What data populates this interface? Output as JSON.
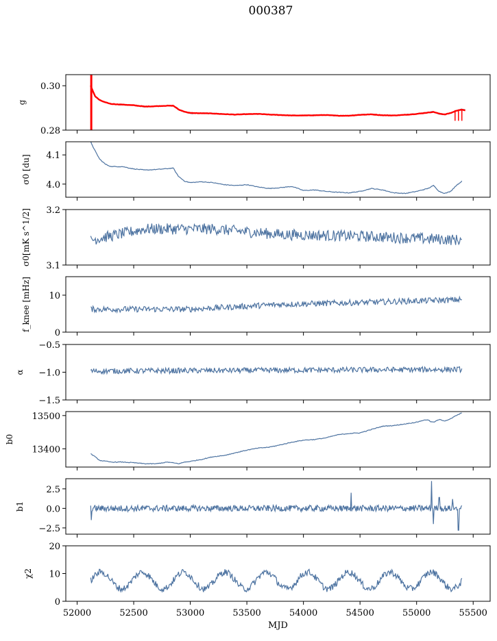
{
  "figure": {
    "title": "000387"
  },
  "style": {
    "series_color": "#4c72a0",
    "model_color": "#ff0000",
    "axis_color": "#000000"
  },
  "chart_data": [
    {
      "type": "line",
      "ylabel": "g",
      "ylim": [
        0.28,
        0.305
      ],
      "yticks": [
        0.28,
        0.3
      ],
      "ytick_labels": [
        "0.28",
        "0.30"
      ],
      "xlim": [
        51900,
        55650
      ],
      "x_range": [
        52120,
        55430
      ],
      "series": [
        {
          "role": "data",
          "x": [
            52120,
            52140,
            52160,
            52200,
            52250,
            52300,
            52400,
            52500,
            52600,
            52700,
            52800,
            52850,
            52900,
            52950,
            53000,
            53100,
            53200,
            53300,
            53400,
            53500,
            53600,
            53700,
            53800,
            53900,
            54000,
            54100,
            54200,
            54300,
            54400,
            54500,
            54600,
            54700,
            54800,
            54900,
            55000,
            55050,
            55100,
            55150,
            55200,
            55250,
            55300,
            55350,
            55400,
            55430
          ],
          "y": [
            0.2995,
            0.2975,
            0.295,
            0.2935,
            0.2925,
            0.2918,
            0.2913,
            0.2913,
            0.2905,
            0.2908,
            0.291,
            0.291,
            0.289,
            0.2882,
            0.2875,
            0.2877,
            0.2876,
            0.2872,
            0.287,
            0.2872,
            0.2874,
            0.287,
            0.2868,
            0.2866,
            0.2866,
            0.2868,
            0.2868,
            0.2864,
            0.2865,
            0.287,
            0.2872,
            0.2866,
            0.2866,
            0.287,
            0.2874,
            0.2876,
            0.288,
            0.2884,
            0.2872,
            0.287,
            0.2877,
            0.2888,
            0.2895,
            0.289
          ]
        },
        {
          "role": "model",
          "x": [
            52120,
            52140,
            52160,
            52200,
            52250,
            52300,
            52400,
            52500,
            52600,
            52700,
            52800,
            52850,
            52900,
            52950,
            53000,
            53100,
            53200,
            53300,
            53400,
            53500,
            53600,
            53700,
            53800,
            53900,
            54000,
            54100,
            54200,
            54300,
            54400,
            54500,
            54600,
            54700,
            54800,
            54900,
            55000,
            55050,
            55100,
            55150,
            55200,
            55250,
            55300,
            55350,
            55400,
            55430
          ],
          "y": [
            0.3,
            0.2975,
            0.2952,
            0.2935,
            0.2925,
            0.2918,
            0.2915,
            0.2912,
            0.2906,
            0.2908,
            0.291,
            0.291,
            0.2892,
            0.2883,
            0.2877,
            0.2876,
            0.2875,
            0.2872,
            0.287,
            0.2872,
            0.2873,
            0.287,
            0.2868,
            0.2866,
            0.2866,
            0.2867,
            0.2868,
            0.2865,
            0.2865,
            0.2869,
            0.2871,
            0.2867,
            0.2866,
            0.2869,
            0.2873,
            0.2876,
            0.2879,
            0.2882,
            0.2874,
            0.2871,
            0.2877,
            0.2887,
            0.2893,
            0.2888
          ]
        }
      ]
    },
    {
      "type": "line",
      "ylabel": "σ0 [du]",
      "ylim": [
        3.955,
        4.145
      ],
      "yticks": [
        4.0,
        4.1
      ],
      "ytick_labels": [
        "4.0",
        "4.1"
      ],
      "xlim": [
        51900,
        55650
      ],
      "series": [
        {
          "role": "data",
          "x": [
            52120,
            52150,
            52200,
            52250,
            52300,
            52400,
            52500,
            52600,
            52700,
            52800,
            52850,
            52880,
            52900,
            52950,
            53000,
            53100,
            53200,
            53300,
            53400,
            53500,
            53600,
            53700,
            53800,
            53900,
            54000,
            54100,
            54200,
            54300,
            54400,
            54500,
            54600,
            54700,
            54800,
            54900,
            55000,
            55100,
            55150,
            55200,
            55250,
            55300,
            55350,
            55400
          ],
          "y": [
            4.145,
            4.12,
            4.085,
            4.068,
            4.06,
            4.06,
            4.052,
            4.048,
            4.05,
            4.053,
            4.055,
            4.035,
            4.025,
            4.01,
            4.005,
            4.008,
            4.005,
            3.998,
            3.995,
            3.998,
            3.99,
            3.985,
            3.988,
            3.992,
            3.978,
            3.98,
            3.975,
            3.972,
            3.97,
            3.975,
            3.985,
            3.98,
            3.97,
            3.968,
            3.975,
            3.985,
            3.995,
            3.975,
            3.968,
            3.975,
            3.995,
            4.01
          ]
        }
      ]
    },
    {
      "type": "line",
      "ylabel": "σ0[mK s^1/2]",
      "ylim": [
        3.1,
        3.2
      ],
      "yticks": [
        3.1,
        3.2
      ],
      "ytick_labels": [
        "3.1",
        "3.2"
      ],
      "xlim": [
        51900,
        55650
      ],
      "series": [
        {
          "role": "data",
          "x_range": [
            52120,
            55400
          ],
          "n": 480,
          "level": 3.155,
          "amplitude": 0.01,
          "trend": [
            [
              52120,
              3.145
            ],
            [
              52600,
              3.165
            ],
            [
              53200,
              3.165
            ],
            [
              53800,
              3.155
            ],
            [
              54500,
              3.152
            ],
            [
              55400,
              3.145
            ]
          ]
        }
      ]
    },
    {
      "type": "line",
      "ylabel": "f_knee [mHz]",
      "ylim": [
        0,
        15
      ],
      "yticks": [
        0,
        10
      ],
      "ytick_labels": [
        "0",
        "10"
      ],
      "xlim": [
        51900,
        55650
      ],
      "series": [
        {
          "role": "data",
          "x_range": [
            52120,
            55400
          ],
          "n": 480,
          "amplitude": 0.8,
          "trend": [
            [
              52120,
              6.2
            ],
            [
              53000,
              6.2
            ],
            [
              53800,
              7.5
            ],
            [
              54500,
              8.0
            ],
            [
              55400,
              8.8
            ]
          ]
        }
      ]
    },
    {
      "type": "line",
      "ylabel": "α",
      "ylim": [
        -1.5,
        -0.5
      ],
      "yticks": [
        -1.5,
        -1.0,
        -0.5
      ],
      "ytick_labels": [
        "−1.5",
        "−1.0",
        "−0.5"
      ],
      "xlim": [
        51900,
        55650
      ],
      "series": [
        {
          "role": "data",
          "x_range": [
            52120,
            55400
          ],
          "n": 480,
          "amplitude": 0.05,
          "trend": [
            [
              52120,
              -0.98
            ],
            [
              55400,
              -0.95
            ]
          ]
        }
      ]
    },
    {
      "type": "line",
      "ylabel": "b0",
      "ylim": [
        13345,
        13512
      ],
      "yticks": [
        13400,
        13500
      ],
      "ytick_labels": [
        "13400",
        "13500"
      ],
      "xlim": [
        51900,
        55650
      ],
      "series": [
        {
          "role": "data",
          "x": [
            52120,
            52150,
            52200,
            52300,
            52400,
            52500,
            52600,
            52700,
            52800,
            52900,
            52950,
            53000,
            53100,
            53200,
            53300,
            53400,
            53500,
            53600,
            53700,
            53800,
            53900,
            54000,
            54100,
            54200,
            54300,
            54400,
            54500,
            54600,
            54700,
            54800,
            54900,
            55000,
            55050,
            55100,
            55120,
            55150,
            55200,
            55250,
            55300,
            55350,
            55400
          ],
          "y": [
            13385,
            13378,
            13365,
            13360,
            13360,
            13358,
            13355,
            13355,
            13360,
            13355,
            13360,
            13362,
            13368,
            13376,
            13380,
            13388,
            13396,
            13402,
            13405,
            13412,
            13420,
            13426,
            13428,
            13433,
            13442,
            13446,
            13448,
            13458,
            13468,
            13470,
            13475,
            13480,
            13485,
            13488,
            13482,
            13480,
            13488,
            13484,
            13490,
            13500,
            13508
          ]
        }
      ]
    },
    {
      "type": "line",
      "ylabel": "b1",
      "ylim": [
        -3.3,
        3.8
      ],
      "yticks": [
        -2.5,
        0.0,
        2.5
      ],
      "ytick_labels": [
        "−2.5",
        "0.0",
        "2.5"
      ],
      "xlim": [
        51900,
        55650
      ],
      "series": [
        {
          "role": "data",
          "x_range": [
            52120,
            55400
          ],
          "n": 600,
          "amplitude": 0.4,
          "spikes": [
            [
              52125,
              -1.5
            ],
            [
              54420,
              2.0
            ],
            [
              55130,
              3.5
            ],
            [
              55150,
              -2.0
            ],
            [
              55370,
              -2.8
            ],
            [
              55200,
              1.4
            ],
            [
              55320,
              1.2
            ]
          ]
        }
      ]
    },
    {
      "type": "line",
      "ylabel": "χ2",
      "ylim": [
        0,
        20
      ],
      "yticks": [
        0,
        10,
        20
      ],
      "ytick_labels": [
        "0",
        "10",
        "20"
      ],
      "xlim": [
        51900,
        55650
      ],
      "xticks": [
        52000,
        52500,
        53000,
        53500,
        54000,
        54500,
        55000,
        55500
      ],
      "xtick_labels": [
        "52000",
        "52500",
        "53000",
        "53500",
        "54000",
        "54500",
        "55000",
        "55500"
      ],
      "xlabel": "MJD",
      "series": [
        {
          "role": "data",
          "x_range": [
            52120,
            55400
          ],
          "n": 520,
          "level": 7.5,
          "amplitude": 1.2,
          "period": 365,
          "swing": 3.0
        }
      ]
    }
  ]
}
